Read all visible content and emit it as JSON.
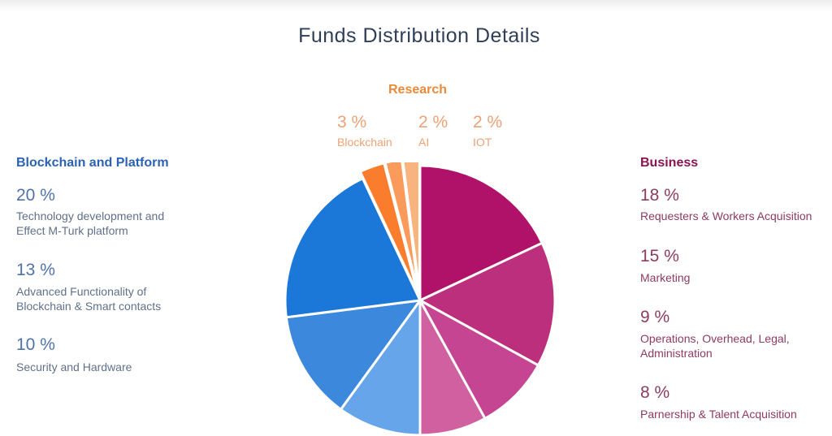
{
  "title": "Funds Distribution Details",
  "groups": {
    "blockchain": {
      "title": "Blockchain and Platform",
      "items": [
        {
          "pct": "20 %",
          "desc1": "Technology development and",
          "desc2": "Effect M-Turk platform"
        },
        {
          "pct": "13 %",
          "desc1": "Advanced Functionality of",
          "desc2": "Blockchain & Smart contacts"
        },
        {
          "pct": "10 %",
          "desc1": "Security and Hardware",
          "desc2": ""
        }
      ]
    },
    "business": {
      "title": "Business",
      "items": [
        {
          "pct": "18 %",
          "desc1": "Requesters & Workers Acquisition",
          "desc2": ""
        },
        {
          "pct": "15 %",
          "desc1": "Marketing",
          "desc2": ""
        },
        {
          "pct": "9 %",
          "desc1": "Operations, Overhead, Legal,",
          "desc2": "Administration"
        },
        {
          "pct": "8 %",
          "desc1": "Parnership & Talent Acquisition",
          "desc2": ""
        }
      ]
    },
    "research": {
      "title": "Research",
      "items": [
        {
          "pct": "3 %",
          "desc1": "Blockchain"
        },
        {
          "pct": "2 %",
          "desc1": "AI"
        },
        {
          "pct": "2 %",
          "desc1": "IOT"
        }
      ]
    }
  },
  "chart_data": {
    "type": "pie",
    "title": "Funds Distribution Details",
    "slices": [
      {
        "group": "Business",
        "label": "Requesters & Workers Acquisition",
        "value": 18,
        "color": "#b0126a"
      },
      {
        "group": "Business",
        "label": "Marketing",
        "value": 15,
        "color": "#bc2f7c"
      },
      {
        "group": "Business",
        "label": "Operations, Overhead, Legal, Administration",
        "value": 9,
        "color": "#c54592"
      },
      {
        "group": "Business",
        "label": "Parnership & Talent Acquisition",
        "value": 8,
        "color": "#d160a1"
      },
      {
        "group": "Blockchain and Platform",
        "label": "Security and Hardware",
        "value": 10,
        "color": "#66a5ea"
      },
      {
        "group": "Blockchain and Platform",
        "label": "Advanced Functionality of Blockchain & Smart contacts",
        "value": 13,
        "color": "#3b88dc"
      },
      {
        "group": "Blockchain and Platform",
        "label": "Technology development and Effect M-Turk platform",
        "value": 20,
        "color": "#1b78d9"
      },
      {
        "group": "Research",
        "label": "Blockchain",
        "value": 3,
        "color": "#fa7d2d"
      },
      {
        "group": "Research",
        "label": "AI",
        "value": 2,
        "color": "#fa9b5c"
      },
      {
        "group": "Research",
        "label": "IOT",
        "value": 2,
        "color": "#f9b37f"
      }
    ]
  }
}
